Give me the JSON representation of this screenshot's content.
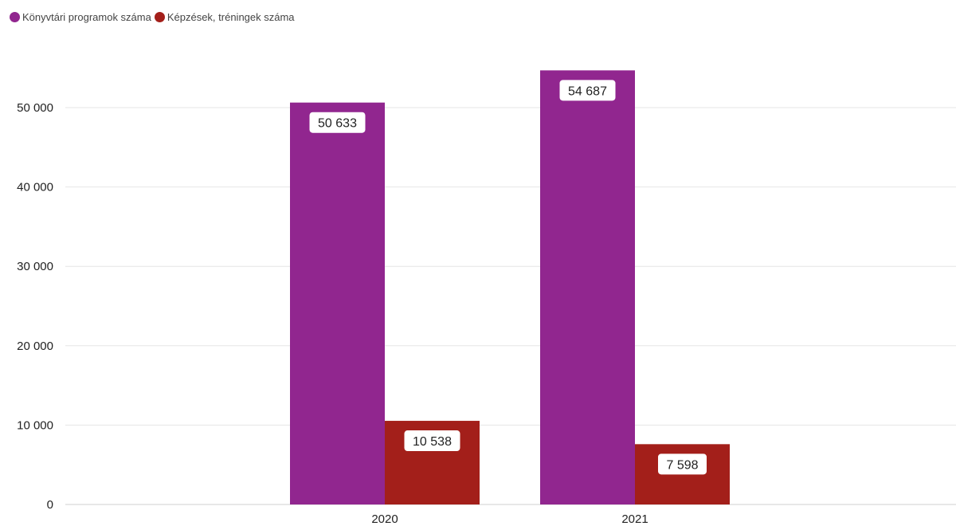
{
  "legend": {
    "items": [
      {
        "label": "Könyvtári programok száma",
        "color": "#91268f"
      },
      {
        "label": "Képzések, tréningek száma",
        "color": "#a31f1a"
      }
    ]
  },
  "chart_data": {
    "type": "bar",
    "categories": [
      "2020",
      "2021"
    ],
    "series": [
      {
        "name": "Könyvtári programok száma",
        "color": "#91268f",
        "values": [
          50633,
          54687
        ],
        "labels": [
          "50 633",
          "54 687"
        ]
      },
      {
        "name": "Képzések, tréningek száma",
        "color": "#a31f1a",
        "values": [
          10538,
          7598
        ],
        "labels": [
          "10 538",
          "7 598"
        ]
      }
    ],
    "ylim": [
      0,
      55000
    ],
    "yticks": [
      0,
      10000,
      20000,
      30000,
      40000,
      50000
    ],
    "ytick_labels": [
      "0",
      "10 000",
      "20 000",
      "30 000",
      "40 000",
      "50 000"
    ],
    "grid": true,
    "legend_position": "top-left",
    "title": "",
    "xlabel": "",
    "ylabel": ""
  }
}
